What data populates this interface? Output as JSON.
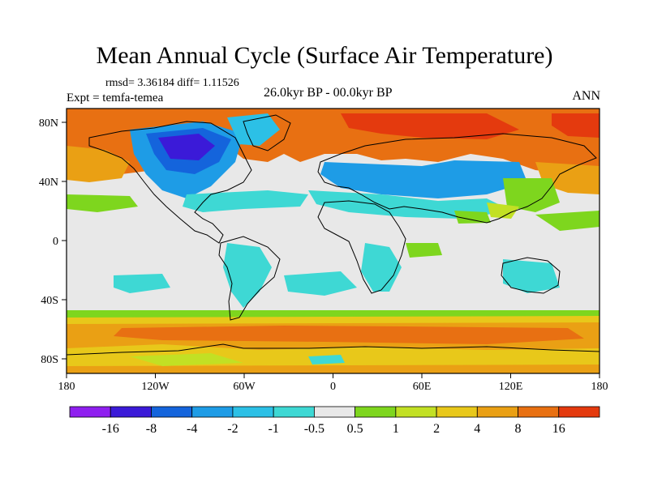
{
  "figure": {
    "title": "Mean Annual Cycle (Surface Air Temperature)",
    "stats_line": "rmsd= 3.36184 diff= 1.11526",
    "experiment": "Expt = temfa-temea",
    "period": "26.0kyr BP - 00.0kyr BP",
    "season": "ANN"
  },
  "map_axes": {
    "lon_ticks": [
      "180",
      "120W",
      "60W",
      "0",
      "60E",
      "120E",
      "180"
    ],
    "lat_ticks": [
      "80N",
      "40N",
      "0",
      "40S",
      "80S"
    ]
  },
  "colorbar": {
    "labels": [
      "-16",
      "-8",
      "-4",
      "-2",
      "-1",
      "-0.5",
      "0.5",
      "1",
      "2",
      "4",
      "8",
      "16"
    ],
    "colors": [
      "#8f1fef",
      "#3b1ad8",
      "#1464dc",
      "#1e9ce6",
      "#2cc0e6",
      "#3ed8d4",
      "#e8e8e8",
      "#7ed61e",
      "#c2e024",
      "#e8c81a",
      "#eaa014",
      "#e87012",
      "#e43a0e"
    ]
  }
}
